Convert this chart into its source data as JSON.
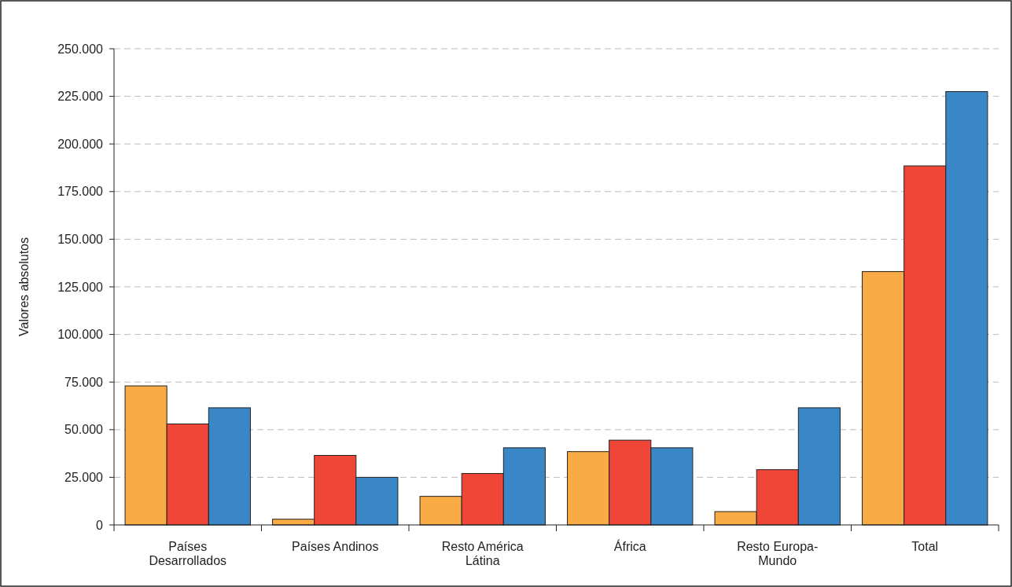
{
  "chart_data": {
    "type": "bar",
    "ylabel": "Valores absolutos",
    "categories": [
      "Países Desarrollados",
      "Países Andinos",
      "Resto América Látina",
      "África",
      "Resto Europa-Mundo",
      "Total"
    ],
    "series": [
      {
        "color": "#f9ab45",
        "values": [
          73000,
          3000,
          15000,
          38500,
          7000,
          133000
        ]
      },
      {
        "color": "#f04638",
        "values": [
          53000,
          36500,
          27000,
          44500,
          29000,
          188500
        ]
      },
      {
        "color": "#3a87c8",
        "values": [
          61500,
          25000,
          40500,
          40500,
          61500,
          227500
        ]
      }
    ],
    "ylim": [
      0,
      250000
    ],
    "yticks": [
      {
        "value": 0,
        "label": "0"
      },
      {
        "value": 25000,
        "label": "25.000"
      },
      {
        "value": 50000,
        "label": "50.000"
      },
      {
        "value": 75000,
        "label": "75.000"
      },
      {
        "value": 100000,
        "label": "100.000"
      },
      {
        "value": 125000,
        "label": "125.000"
      },
      {
        "value": 150000,
        "label": "150.000"
      },
      {
        "value": 175000,
        "label": "175.000"
      },
      {
        "value": 200000,
        "label": "200.000"
      },
      {
        "value": 225000,
        "label": "225.000"
      },
      {
        "value": 250000,
        "label": "250.000"
      }
    ],
    "grid": "y"
  }
}
